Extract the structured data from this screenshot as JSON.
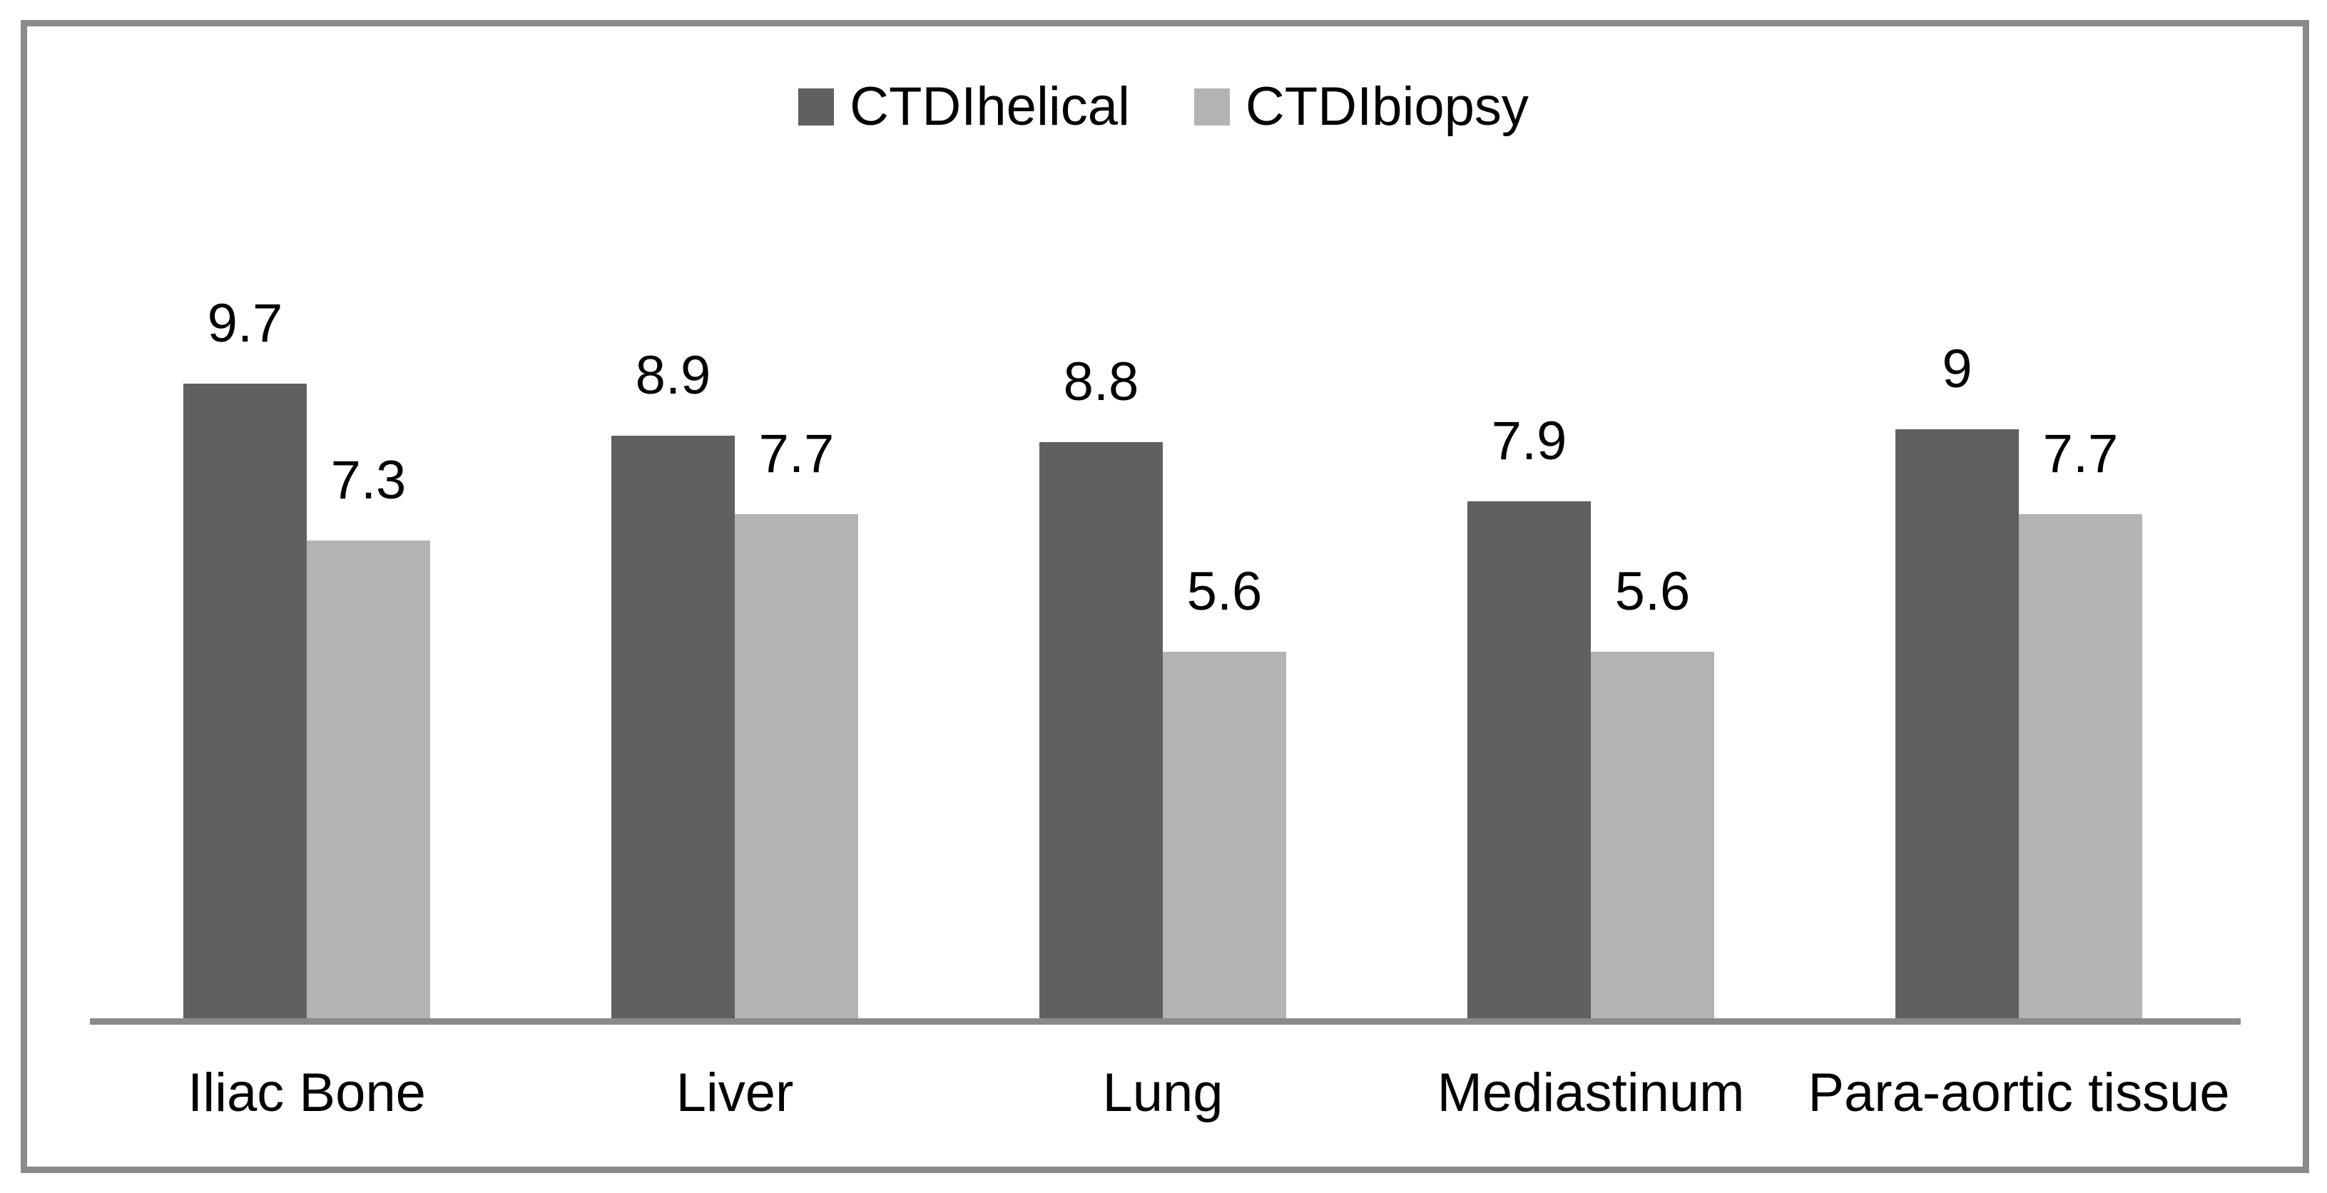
{
  "chart_data": {
    "type": "bar",
    "title": "",
    "categories": [
      "Iliac Bone",
      "Liver",
      "Lung",
      "Mediastinum",
      "Para-aortic tissue"
    ],
    "series": [
      {
        "name": "CTDIhelical",
        "color": "#606060",
        "values": [
          9.7,
          8.9,
          8.8,
          7.9,
          9
        ]
      },
      {
        "name": "CTDIbiopsy",
        "color": "#b3b3b3",
        "values": [
          7.3,
          7.7,
          5.6,
          5.6,
          7.7
        ]
      }
    ],
    "data_labels": [
      [
        "9.7",
        "8.9",
        "8.8",
        "7.9",
        "9"
      ],
      [
        "7.3",
        "7.7",
        "5.6",
        "5.6",
        "7.7"
      ]
    ],
    "xlabel": "",
    "ylabel": "",
    "ylim": [
      0,
      11.2
    ],
    "grid": false,
    "y_axis_shown": false,
    "x_axis_line_shown": true,
    "legend_position": "top-center",
    "colors": {
      "axis_line": "#8a8a8a",
      "frame_border": "#8a8a8a",
      "label_text": "#000000",
      "background": "#ffffff"
    }
  }
}
